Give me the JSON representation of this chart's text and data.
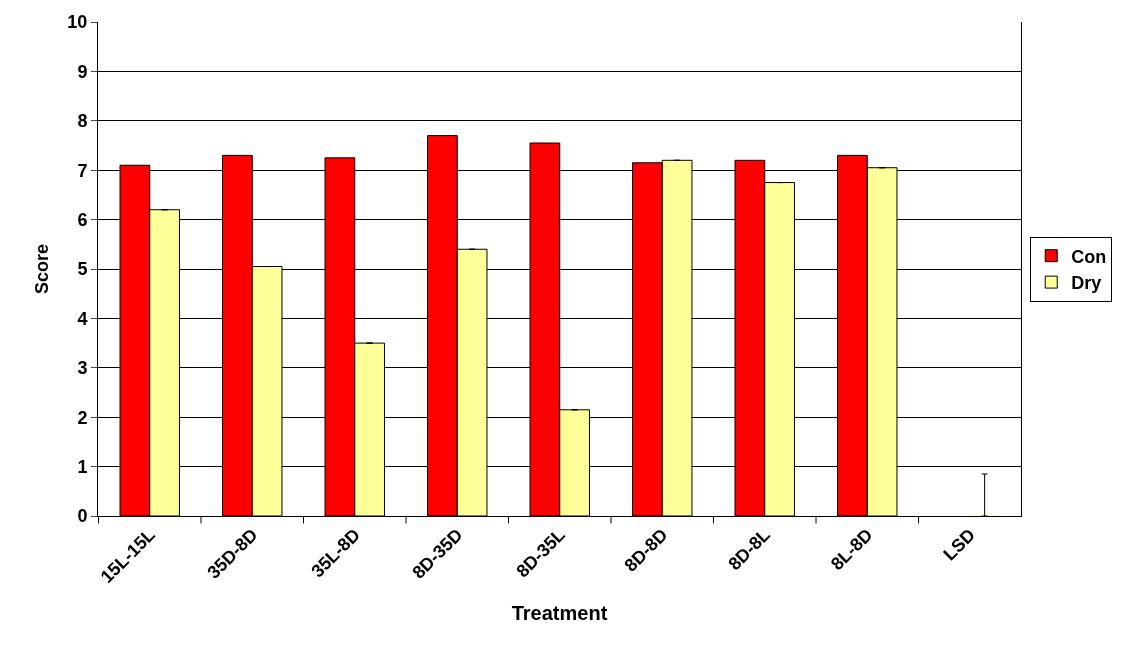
{
  "chart_data": {
    "type": "bar",
    "xlabel": "Treatment",
    "ylabel": "Score",
    "categories": [
      "15L-15L",
      "35D-8D",
      "35L-8D",
      "8D-35D",
      "8D-35L",
      "8D-8D",
      "8D-8L",
      "8L-8D",
      "LSD"
    ],
    "series": [
      {
        "name": "Con",
        "color": "#ff0000",
        "values": [
          7.1,
          7.3,
          7.25,
          7.7,
          7.55,
          7.15,
          7.2,
          7.3,
          null
        ]
      },
      {
        "name": "Dry",
        "color": "#ffff99",
        "values": [
          6.2,
          5.05,
          3.5,
          5.4,
          2.15,
          7.2,
          6.75,
          7.05,
          0
        ],
        "errors": [
          null,
          null,
          null,
          null,
          null,
          null,
          null,
          null,
          [
            0,
            0.85
          ]
        ]
      }
    ],
    "ylim": [
      0,
      10
    ],
    "yticks": [
      0,
      1,
      2,
      3,
      4,
      5,
      6,
      7,
      8,
      9,
      10
    ],
    "grid": "y",
    "legend": "right"
  }
}
